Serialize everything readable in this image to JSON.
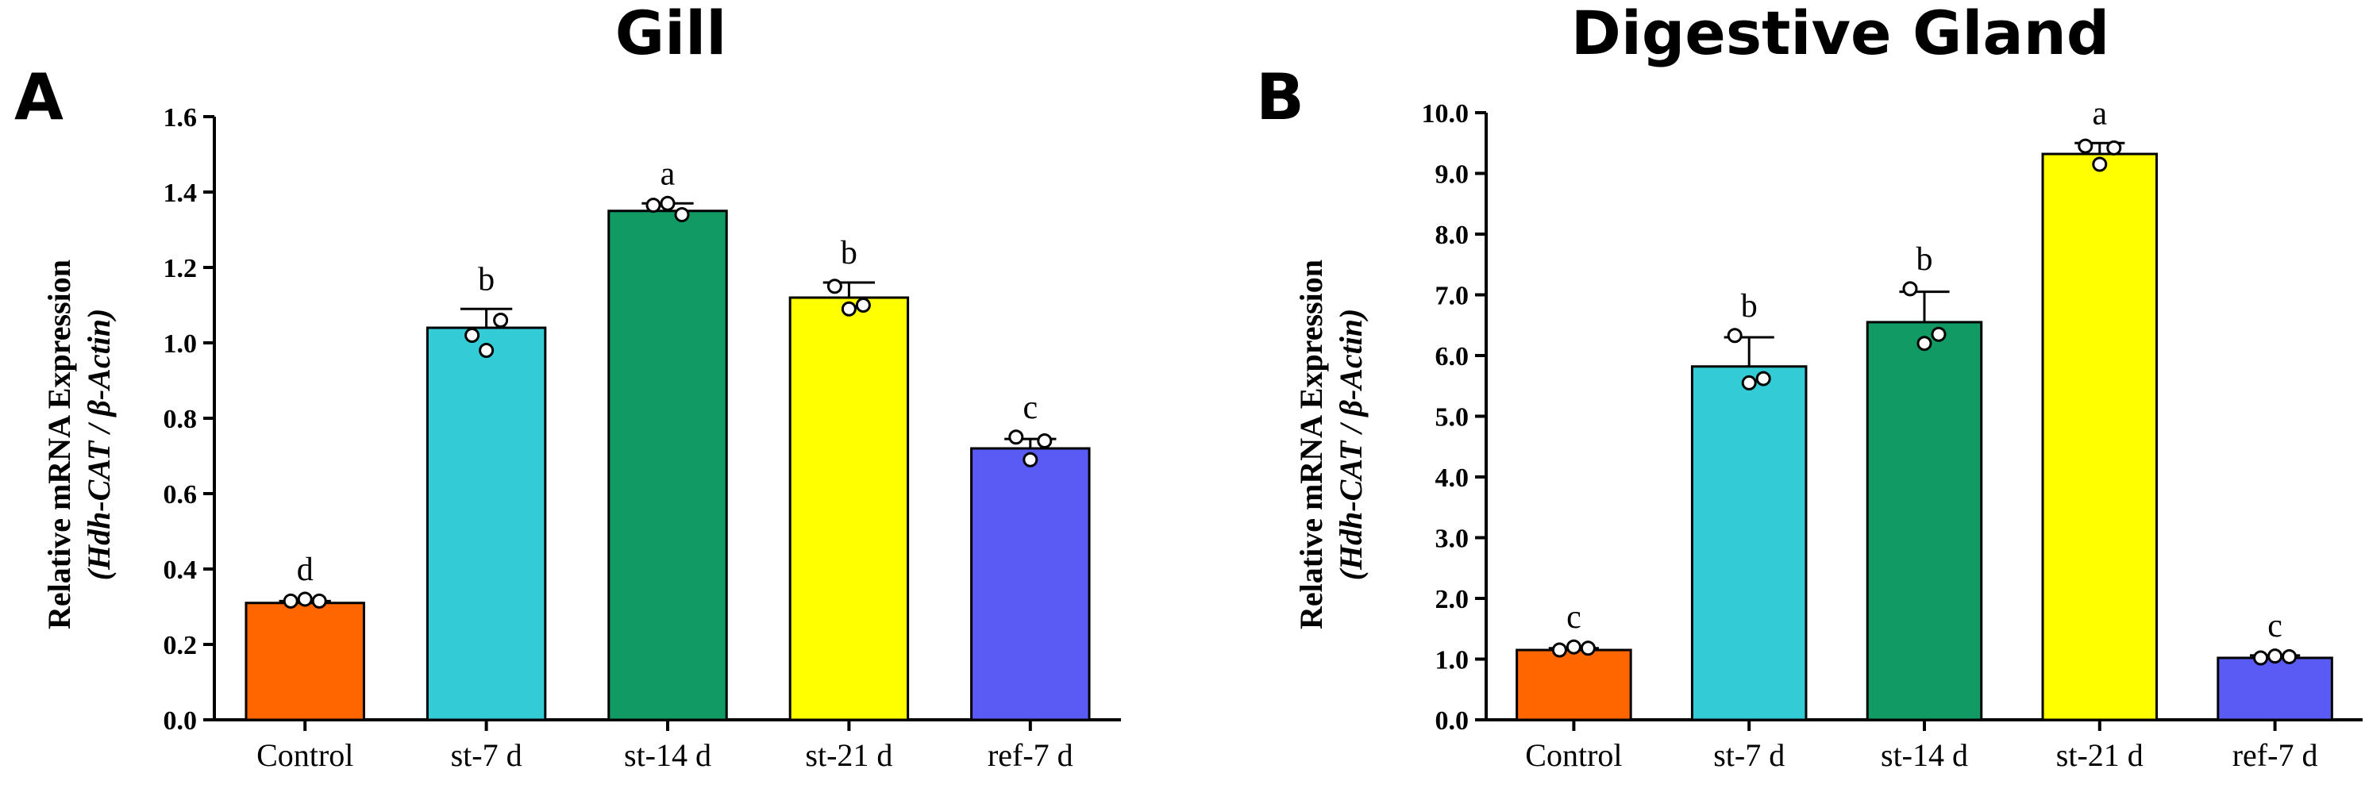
{
  "chart_data": [
    {
      "type": "bar",
      "panel": "A",
      "title": "Gill",
      "ylabel_line1": "Relative mRNA Expression",
      "ylabel_line2": "(Hdh-CAT / β-Actin)",
      "ylim": [
        0,
        1.6
      ],
      "yticks": [
        "0.0",
        "0.2",
        "0.4",
        "0.6",
        "0.8",
        "1.0",
        "1.2",
        "1.4",
        "1.6"
      ],
      "categories": [
        "Control",
        "st-7 d",
        "st-14 d",
        "st-21 d",
        "ref-7 d"
      ],
      "values": [
        0.31,
        1.04,
        1.35,
        1.12,
        0.72
      ],
      "errors": [
        0.005,
        0.05,
        0.02,
        0.04,
        0.025
      ],
      "points": [
        [
          0.315,
          0.32,
          0.315
        ],
        [
          1.02,
          0.98,
          1.06
        ],
        [
          1.365,
          1.37,
          1.34
        ],
        [
          1.15,
          1.09,
          1.1
        ],
        [
          0.75,
          0.69,
          0.74
        ]
      ],
      "labels": [
        "d",
        "b",
        "a",
        "b",
        "c"
      ],
      "colors": [
        "#ff6600",
        "#33ccd6",
        "#119a63",
        "#ffff00",
        "#5a5af5"
      ]
    },
    {
      "type": "bar",
      "panel": "B",
      "title": "Digestive Gland",
      "ylabel_line1": "Relative mRNA Expression",
      "ylabel_line2": "(Hdh-CAT / β-Actin)",
      "ylim": [
        0,
        10
      ],
      "yticks": [
        "0.0",
        "1.0",
        "2.0",
        "3.0",
        "4.0",
        "5.0",
        "6.0",
        "7.0",
        "8.0",
        "9.0",
        "10.0"
      ],
      "categories": [
        "Control",
        "st-7 d",
        "st-14 d",
        "st-21 d",
        "ref-7 d"
      ],
      "values": [
        1.15,
        5.82,
        6.55,
        9.32,
        1.02
      ],
      "errors": [
        0.03,
        0.48,
        0.5,
        0.18,
        0.04
      ],
      "points": [
        [
          1.15,
          1.2,
          1.18
        ],
        [
          6.33,
          5.55,
          5.62
        ],
        [
          7.1,
          6.2,
          6.35
        ],
        [
          9.45,
          9.15,
          9.42
        ],
        [
          1.02,
          1.05,
          1.04
        ]
      ],
      "labels": [
        "c",
        "b",
        "b",
        "a",
        "c"
      ],
      "colors": [
        "#ff6600",
        "#33ccd6",
        "#119a63",
        "#ffff00",
        "#5a5af5"
      ]
    }
  ]
}
